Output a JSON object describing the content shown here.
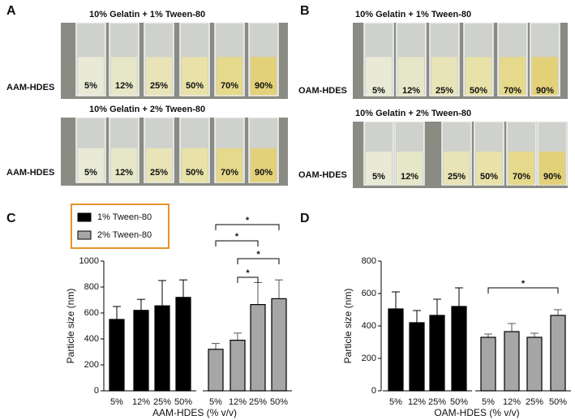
{
  "panels": [
    {
      "label": "A",
      "rows": [
        {
          "title": "10% Gelatin + 1% Tween-80",
          "row_label": "AAM-HDES",
          "samples": [
            "5%",
            "12%",
            "25%",
            "50%",
            "70%",
            "90%"
          ]
        },
        {
          "title": "10% Gelatin + 2% Tween-80",
          "row_label": "AAM-HDES",
          "samples": [
            "5%",
            "12%",
            "25%",
            "50%",
            "70%",
            "90%"
          ]
        }
      ]
    },
    {
      "label": "B",
      "rows": [
        {
          "title": "10% Gelatin + 1% Tween-80",
          "row_label": "OAM-HDES",
          "samples": [
            "5%",
            "12%",
            "25%",
            "50%",
            "70%",
            "90%"
          ]
        },
        {
          "title": "10% Gelatin + 2% Tween-80",
          "row_label": "OAM-HDES",
          "samples": [
            "5%",
            "12%",
            "25%",
            "50%",
            "70%",
            "90%"
          ]
        }
      ]
    }
  ],
  "chart_data": [
    {
      "type": "bar",
      "panel_label": "C",
      "xlabel": "AAM-HDES (% v/v)",
      "ylabel": "Particle size (nm)",
      "categories": [
        "5%",
        "12%",
        "25%",
        "50%"
      ],
      "series": [
        {
          "name": "1% Tween-80",
          "color": "#000000",
          "values": [
            550,
            620,
            655,
            720
          ],
          "errors": [
            100,
            85,
            195,
            135
          ]
        },
        {
          "name": "2% Tween-80",
          "color": "#a6a6a6",
          "values": [
            320,
            390,
            665,
            710
          ],
          "errors": [
            45,
            55,
            170,
            145
          ]
        }
      ],
      "ylim": [
        0,
        1000
      ],
      "yticks": [
        0,
        200,
        400,
        600,
        800,
        1000
      ],
      "legend": "top-left",
      "annotations": [
        "*",
        "*",
        "*",
        "*"
      ]
    },
    {
      "type": "bar",
      "panel_label": "D",
      "xlabel": "OAM-HDES (% v/v)",
      "ylabel": "Particle size (nm)",
      "categories": [
        "5%",
        "12%",
        "25%",
        "50%"
      ],
      "series": [
        {
          "color": "#000000",
          "values": [
            505,
            420,
            465,
            520
          ],
          "errors": [
            105,
            75,
            100,
            115
          ]
        },
        {
          "color": "#a6a6a6",
          "values": [
            330,
            365,
            330,
            465
          ],
          "errors": [
            20,
            50,
            25,
            35
          ]
        }
      ],
      "ylim": [
        0,
        800
      ],
      "yticks": [
        0,
        200,
        400,
        600,
        800
      ],
      "annotations": [
        "*"
      ]
    }
  ]
}
